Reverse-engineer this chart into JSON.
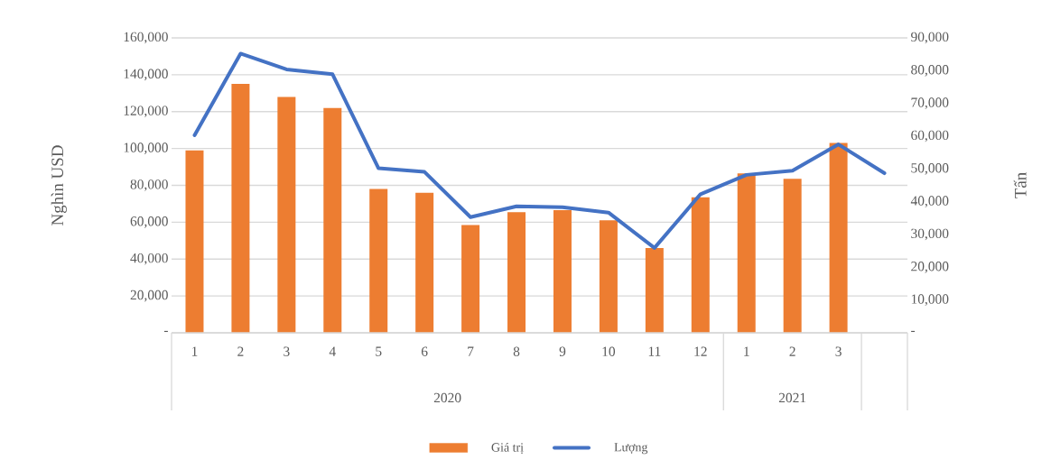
{
  "chart_data": {
    "type": "bar",
    "ylabel": "Nghìn USD",
    "y2label": "Tấn",
    "categories": [
      "1",
      "2",
      "3",
      "4",
      "5",
      "6",
      "7",
      "8",
      "9",
      "10",
      "11",
      "12",
      "1",
      "2",
      "3",
      null
    ],
    "series": [
      {
        "name": "Giá trị",
        "color": "#ed7d31",
        "values": [
          99000,
          135000,
          128000,
          122000,
          78000,
          76000,
          58500,
          65500,
          66500,
          61000,
          46000,
          73500,
          86500,
          83500,
          103000,
          null
        ]
      },
      {
        "name": "Lượng",
        "type": "line",
        "axis": "y2",
        "color": "#4472c4",
        "values": [
          60300,
          85200,
          80400,
          78900,
          50200,
          49100,
          35300,
          38600,
          38300,
          36700,
          25900,
          42300,
          48200,
          49500,
          57500,
          48700
        ]
      }
    ],
    "ylim": [
      0,
      160000
    ],
    "yticks": [
      {
        "value": 0,
        "label": "-"
      },
      {
        "value": 20000,
        "label": "20,000"
      },
      {
        "value": 40000,
        "label": "40,000"
      },
      {
        "value": 60000,
        "label": "60,000"
      },
      {
        "value": 80000,
        "label": "80,000"
      },
      {
        "value": 100000,
        "label": "100,000"
      },
      {
        "value": 120000,
        "label": "120,000"
      },
      {
        "value": 140000,
        "label": "140,000"
      },
      {
        "value": 160000,
        "label": "160,000"
      }
    ],
    "y2lim": [
      0,
      90000
    ],
    "y2ticks": [
      {
        "value": 0,
        "label": "-"
      },
      {
        "value": 10000,
        "label": "10,000"
      },
      {
        "value": 20000,
        "label": "20,000"
      },
      {
        "value": 30000,
        "label": "30,000"
      },
      {
        "value": 40000,
        "label": "40,000"
      },
      {
        "value": 50000,
        "label": "50,000"
      },
      {
        "value": 60000,
        "label": "60,000"
      },
      {
        "value": 70000,
        "label": "70,000"
      },
      {
        "value": 80000,
        "label": "80,000"
      },
      {
        "value": 90000,
        "label": "90,000"
      }
    ],
    "annotations": [
      "2020",
      "2021"
    ],
    "grid": "y",
    "legend": "bottom"
  }
}
